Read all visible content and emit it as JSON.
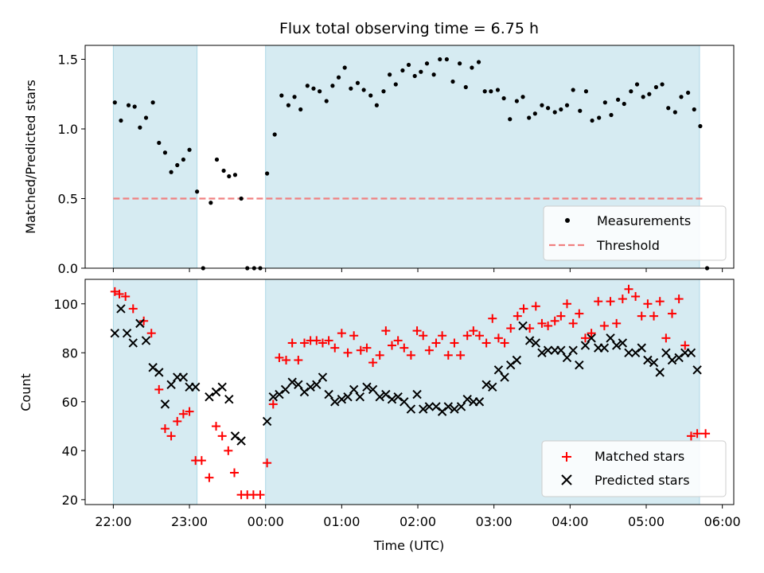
{
  "chart_data": {
    "title": "Flux total observing time = 6.75 h",
    "xlabel": "Time (UTC)",
    "x_tick_labels": [
      "22:00",
      "23:00",
      "00:00",
      "01:00",
      "02:00",
      "03:00",
      "04:00",
      "05:00",
      "06:00"
    ],
    "x_range_hours": [
      21.63,
      30.15
    ],
    "shaded_intervals_hours": [
      [
        22.0,
        23.1
      ],
      [
        24.0,
        29.7
      ]
    ],
    "shade_color": "#add8e6",
    "panels": [
      {
        "id": "ratio",
        "type": "scatter",
        "ylabel": "Matched/Predicted stars",
        "ylim": [
          0,
          1.6
        ],
        "y_ticks": [
          0.0,
          0.5,
          1.0,
          1.5
        ],
        "y_tick_labels": [
          "0.0",
          "0.5",
          "1.0",
          "1.5"
        ],
        "grid": false,
        "legend_position": "bottom-right",
        "legend": [
          {
            "label": "Measurements",
            "marker": "dot",
            "color": "#000000"
          },
          {
            "label": "Threshold",
            "marker": "dashed-line",
            "color": "#f08080"
          }
        ],
        "threshold": {
          "value": 0.5,
          "x_start": 22.0,
          "x_end": 29.75,
          "color": "#f08080"
        },
        "series": [
          {
            "name": "Measurements",
            "color": "#000000",
            "x": [
              22.02,
              22.1,
              22.2,
              22.28,
              22.35,
              22.43,
              22.52,
              22.6,
              22.68,
              22.76,
              22.84,
              22.92,
              23.0,
              23.1,
              23.18,
              23.28,
              23.36,
              23.45,
              23.52,
              23.6,
              23.68,
              23.76,
              23.85,
              23.93,
              24.02,
              24.12,
              24.21,
              24.3,
              24.38,
              24.46,
              24.55,
              24.63,
              24.71,
              24.8,
              24.88,
              24.96,
              25.04,
              25.12,
              25.21,
              25.29,
              25.38,
              25.46,
              25.55,
              25.63,
              25.71,
              25.8,
              25.88,
              25.96,
              26.04,
              26.12,
              26.21,
              26.29,
              26.38,
              26.46,
              26.55,
              26.63,
              26.71,
              26.8,
              26.88,
              26.96,
              27.05,
              27.13,
              27.21,
              27.3,
              27.38,
              27.46,
              27.54,
              27.63,
              27.71,
              27.8,
              27.88,
              27.96,
              28.04,
              28.13,
              28.21,
              28.29,
              28.38,
              28.46,
              28.54,
              28.63,
              28.71,
              28.8,
              28.88,
              28.96,
              29.04,
              29.13,
              29.21,
              29.29,
              29.38,
              29.46,
              29.55,
              29.63,
              29.71,
              29.8
            ],
            "values": [
              1.19,
              1.06,
              1.17,
              1.16,
              1.01,
              1.08,
              1.19,
              0.9,
              0.83,
              0.69,
              0.74,
              0.78,
              0.85,
              0.55,
              0.0,
              0.47,
              0.78,
              0.7,
              0.66,
              0.67,
              0.5,
              0.0,
              0.0,
              0.0,
              0.68,
              0.96,
              1.24,
              1.17,
              1.23,
              1.14,
              1.31,
              1.29,
              1.27,
              1.2,
              1.31,
              1.37,
              1.44,
              1.29,
              1.33,
              1.28,
              1.24,
              1.17,
              1.27,
              1.39,
              1.32,
              1.42,
              1.46,
              1.38,
              1.41,
              1.47,
              1.39,
              1.5,
              1.5,
              1.34,
              1.47,
              1.3,
              1.44,
              1.48,
              1.27,
              1.27,
              1.28,
              1.22,
              1.07,
              1.2,
              1.23,
              1.08,
              1.11,
              1.17,
              1.15,
              1.12,
              1.14,
              1.17,
              1.28,
              1.13,
              1.27,
              1.06,
              1.08,
              1.19,
              1.1,
              1.21,
              1.18,
              1.27,
              1.32,
              1.23,
              1.25,
              1.3,
              1.32,
              1.15,
              1.12,
              1.23,
              1.26,
              1.14,
              1.02,
              0.0
            ]
          }
        ]
      },
      {
        "id": "counts",
        "type": "scatter",
        "ylabel": "Count",
        "ylim": [
          18,
          110
        ],
        "y_ticks": [
          20,
          40,
          60,
          80,
          100
        ],
        "y_tick_labels": [
          "20",
          "40",
          "60",
          "80",
          "100"
        ],
        "grid": false,
        "legend_position": "bottom-right",
        "legend": [
          {
            "label": "Matched stars",
            "marker": "plus",
            "color": "#ff0000"
          },
          {
            "label": "Predicted stars",
            "marker": "x",
            "color": "#000000"
          }
        ],
        "series": [
          {
            "name": "Matched stars",
            "marker": "plus",
            "color": "#ff0000",
            "x": [
              22.02,
              22.08,
              22.16,
              22.26,
              22.4,
              22.5,
              22.6,
              22.68,
              22.76,
              22.84,
              22.92,
              23.0,
              23.08,
              23.16,
              23.26,
              23.35,
              23.43,
              23.51,
              23.59,
              23.68,
              23.76,
              23.84,
              23.93,
              24.02,
              24.1,
              24.18,
              24.27,
              24.35,
              24.43,
              24.51,
              24.59,
              24.67,
              24.75,
              24.83,
              24.91,
              25.0,
              25.08,
              25.16,
              25.25,
              25.33,
              25.41,
              25.5,
              25.58,
              25.66,
              25.74,
              25.82,
              25.91,
              25.99,
              26.07,
              26.15,
              26.24,
              26.32,
              26.4,
              26.48,
              26.56,
              26.65,
              26.73,
              26.81,
              26.9,
              26.98,
              27.06,
              27.14,
              27.22,
              27.31,
              27.39,
              27.47,
              27.55,
              27.63,
              27.71,
              27.8,
              27.88,
              27.96,
              28.04,
              28.12,
              28.2,
              28.28,
              28.37,
              28.45,
              28.53,
              28.61,
              28.69,
              28.77,
              28.86,
              28.94,
              29.02,
              29.1,
              29.18,
              29.26,
              29.34,
              29.43,
              29.51,
              29.59,
              29.67,
              29.78
            ],
            "values": [
              105,
              104,
              103,
              98,
              93,
              88,
              65,
              49,
              46,
              52,
              55,
              56,
              36,
              36,
              29,
              50,
              46,
              40,
              31,
              22,
              22,
              22,
              22,
              35,
              59,
              78,
              77,
              84,
              77,
              84,
              85,
              85,
              84,
              85,
              82,
              88,
              80,
              87,
              81,
              82,
              76,
              79,
              89,
              83,
              85,
              82,
              79,
              89,
              87,
              81,
              84,
              87,
              79,
              84,
              79,
              87,
              89,
              87,
              84,
              94,
              86,
              84,
              90,
              95,
              98,
              90,
              99,
              92,
              91,
              93,
              95,
              100,
              92,
              96,
              86,
              88,
              101,
              91,
              101,
              92,
              102,
              106,
              103,
              95,
              100,
              95,
              101,
              86,
              96,
              102,
              83,
              46,
              47,
              47
            ]
          },
          {
            "name": "Predicted stars",
            "marker": "x",
            "color": "#000000",
            "x": [
              22.02,
              22.1,
              22.18,
              22.26,
              22.35,
              22.43,
              22.52,
              22.6,
              22.68,
              22.76,
              22.84,
              22.92,
              23.0,
              23.08,
              23.26,
              23.35,
              23.43,
              23.52,
              23.6,
              23.68,
              24.02,
              24.1,
              24.18,
              24.26,
              24.35,
              24.43,
              24.51,
              24.59,
              24.67,
              24.75,
              24.83,
              24.91,
              25.0,
              25.08,
              25.16,
              25.24,
              25.33,
              25.41,
              25.5,
              25.58,
              25.66,
              25.74,
              25.82,
              25.91,
              25.99,
              26.07,
              26.15,
              26.24,
              26.32,
              26.4,
              26.48,
              26.57,
              26.65,
              26.73,
              26.81,
              26.9,
              26.98,
              27.06,
              27.14,
              27.22,
              27.3,
              27.38,
              27.47,
              27.55,
              27.63,
              27.71,
              27.8,
              27.88,
              27.96,
              28.04,
              28.12,
              28.2,
              28.28,
              28.37,
              28.45,
              28.53,
              28.61,
              28.69,
              28.77,
              28.86,
              28.94,
              29.02,
              29.1,
              29.18,
              29.26,
              29.34,
              29.43,
              29.51,
              29.59,
              29.67
            ],
            "values": [
              88,
              98,
              88,
              84,
              92,
              85,
              74,
              72,
              59,
              67,
              70,
              70,
              66,
              66,
              62,
              64,
              66,
              61,
              46,
              44,
              52,
              62,
              63,
              65,
              68,
              67,
              64,
              66,
              67,
              70,
              63,
              60,
              61,
              62,
              65,
              62,
              66,
              65,
              62,
              63,
              61,
              62,
              60,
              57,
              63,
              57,
              58,
              58,
              56,
              58,
              57,
              58,
              61,
              60,
              60,
              67,
              66,
              73,
              70,
              75,
              77,
              91,
              85,
              84,
              80,
              81,
              81,
              81,
              78,
              81,
              75,
              83,
              86,
              82,
              82,
              86,
              83,
              84,
              80,
              80,
              82,
              77,
              76,
              72,
              80,
              77,
              78,
              80,
              80,
              73
            ]
          }
        ]
      }
    ]
  }
}
